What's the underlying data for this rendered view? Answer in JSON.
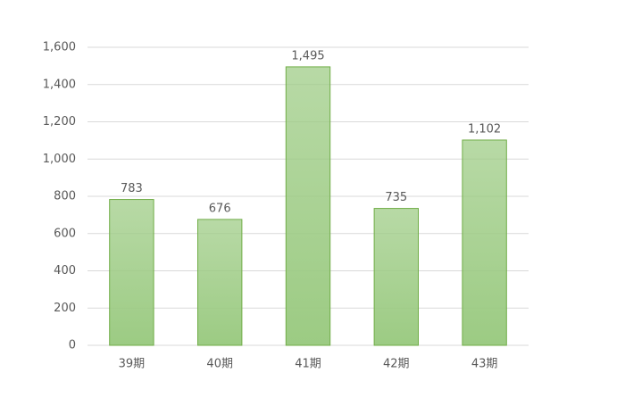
{
  "chart_data": {
    "type": "bar",
    "categories": [
      "39期",
      "40期",
      "41期",
      "42期",
      "43期"
    ],
    "values": [
      783,
      676,
      1495,
      735,
      1102
    ],
    "value_labels": [
      "783",
      "676",
      "1,495",
      "735",
      "1,102"
    ],
    "color": "#9ccb83",
    "edge_color": "#70ad47",
    "ylim": [
      0,
      1600
    ],
    "yticks": [
      0,
      200,
      400,
      600,
      800,
      {
        "value": 1000,
        "label": "1,000"
      },
      {
        "value": 1200,
        "label": "1,200"
      },
      {
        "value": 1400,
        "label": "1,400"
      },
      {
        "value": 1600,
        "label": "1,600"
      }
    ],
    "grid": true
  }
}
